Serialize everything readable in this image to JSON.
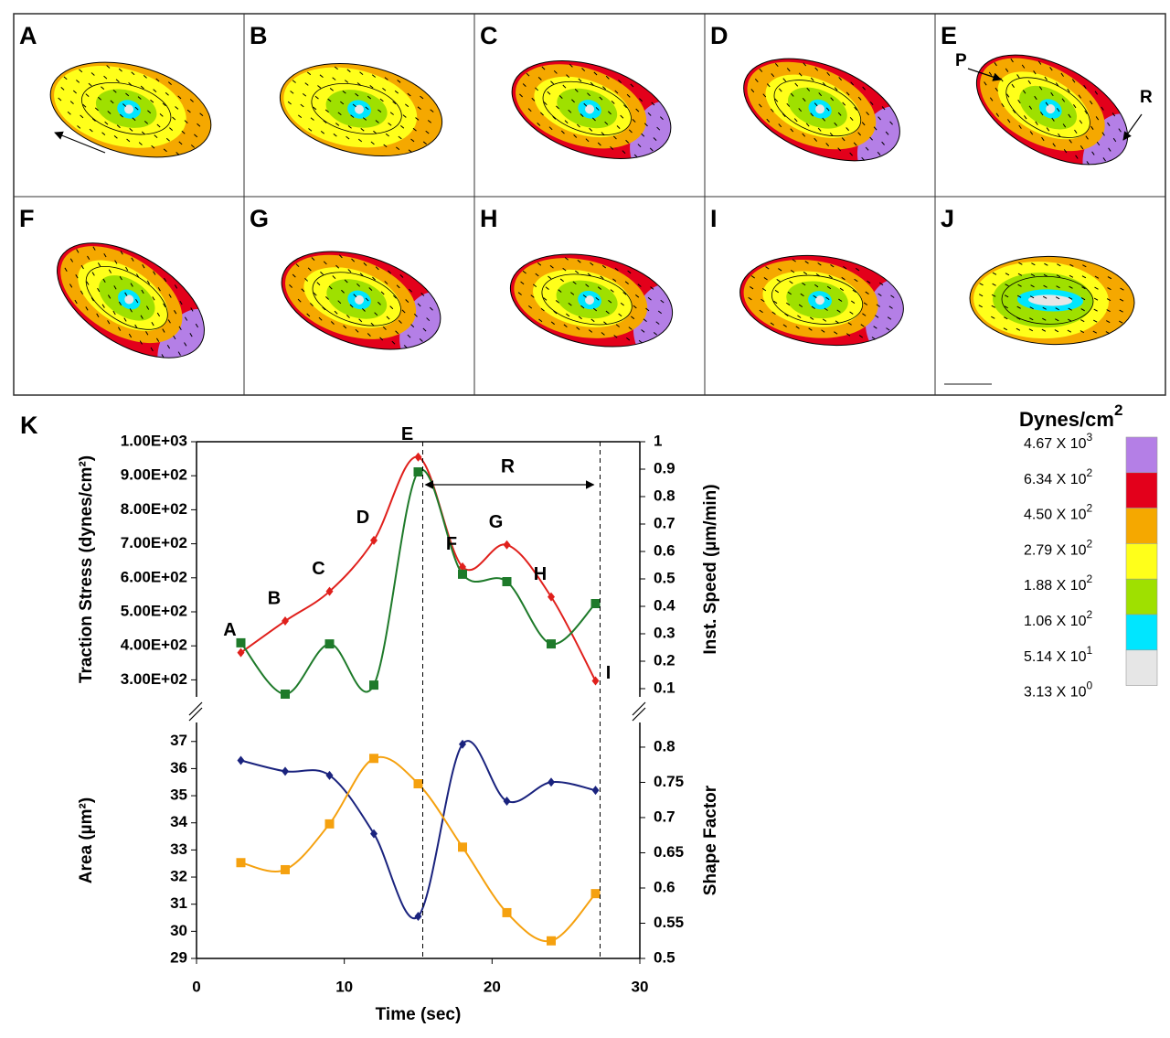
{
  "panels": {
    "labels": [
      "A",
      "B",
      "C",
      "D",
      "E",
      "F",
      "G",
      "H",
      "I",
      "J"
    ],
    "arrow_labels": [
      "P",
      "R"
    ]
  },
  "chart_data": [
    {
      "type": "line",
      "panel_label": "K",
      "x": [
        3,
        6,
        9,
        12,
        15,
        18,
        21,
        24,
        27
      ],
      "xlim": [
        0,
        30
      ],
      "ylabel": "Traction Stress (dynes/cm²)",
      "y2label": "Inst. Speed (µm/min)",
      "ylim": [
        250,
        1000
      ],
      "yticks": [
        {
          "value": 300,
          "label": "3.00E+02"
        },
        {
          "value": 400,
          "label": "4.00E+02"
        },
        {
          "value": 500,
          "label": "5.00E+02"
        },
        {
          "value": 600,
          "label": "6.00E+02"
        },
        {
          "value": 700,
          "label": "7.00E+02"
        },
        {
          "value": 800,
          "label": "8.00E+02"
        },
        {
          "value": 900,
          "label": "9.00E+02"
        },
        {
          "value": 1000,
          "label": "1.00E+03"
        }
      ],
      "y2lim": [
        0.07,
        1
      ],
      "y2ticks": [
        0.1,
        0.2,
        0.3,
        0.4,
        0.5,
        0.6,
        0.7,
        0.8,
        0.9,
        1
      ],
      "series": [
        {
          "color": "#e0201c",
          "marker": "diamond",
          "values": [
            380,
            473,
            560,
            710,
            955,
            632,
            697,
            544,
            297
          ]
        },
        {
          "color": "#1e7a2a",
          "marker": "square",
          "axis": "y2",
          "values": [
            0.267,
            0.08,
            0.263,
            0.113,
            0.89,
            0.517,
            0.49,
            0.263,
            0.41
          ]
        }
      ],
      "point_labels": [
        "A",
        "B",
        "C",
        "D",
        "E",
        "F",
        "G",
        "H",
        "I"
      ],
      "annotation": "R"
    },
    {
      "type": "line",
      "x": [
        3,
        6,
        9,
        12,
        15,
        18,
        21,
        24,
        27
      ],
      "xlim": [
        0,
        30
      ],
      "xticks": [
        0,
        10,
        20,
        30
      ],
      "xlabel": "Time (sec)",
      "ylabel": "Area (µm²)",
      "y2label": "Shape Factor",
      "ylim": [
        29,
        37.7
      ],
      "yticks": [
        29,
        30,
        31,
        32,
        33,
        34,
        35,
        36,
        37
      ],
      "y2lim": [
        0.5,
        0.835
      ],
      "y2ticks": [
        0.5,
        0.55,
        0.6,
        0.65,
        0.7,
        0.75,
        0.8
      ],
      "series": [
        {
          "color": "#1a237e",
          "marker": "diamond",
          "values": [
            36.3,
            35.9,
            35.75,
            33.6,
            30.55,
            36.9,
            34.8,
            35.5,
            35.2
          ]
        },
        {
          "color": "#f5a10f",
          "marker": "square",
          "axis": "y2",
          "values": [
            0.636,
            0.626,
            0.691,
            0.784,
            0.748,
            0.658,
            0.565,
            0.525,
            0.592
          ]
        }
      ]
    }
  ],
  "colorbar": {
    "title": "Dynes/cm",
    "title_sup": "2",
    "colors": [
      "#b47fe6",
      "#e3001b",
      "#f5a800",
      "#ffff1a",
      "#9fe000",
      "#00e6ff",
      "#e6e6e6"
    ],
    "labels": [
      {
        "text": "4.67 X 10",
        "sup": "3"
      },
      {
        "text": "6.34 X 10",
        "sup": "2"
      },
      {
        "text": "4.50 X 10",
        "sup": "2"
      },
      {
        "text": "2.79 X 10",
        "sup": "2"
      },
      {
        "text": "1.88 X 10",
        "sup": "2"
      },
      {
        "text": "1.06 X 10",
        "sup": "2"
      },
      {
        "text": "5.14 X 10",
        "sup": "1"
      },
      {
        "text": "3.13 X 10",
        "sup": "0"
      }
    ]
  }
}
